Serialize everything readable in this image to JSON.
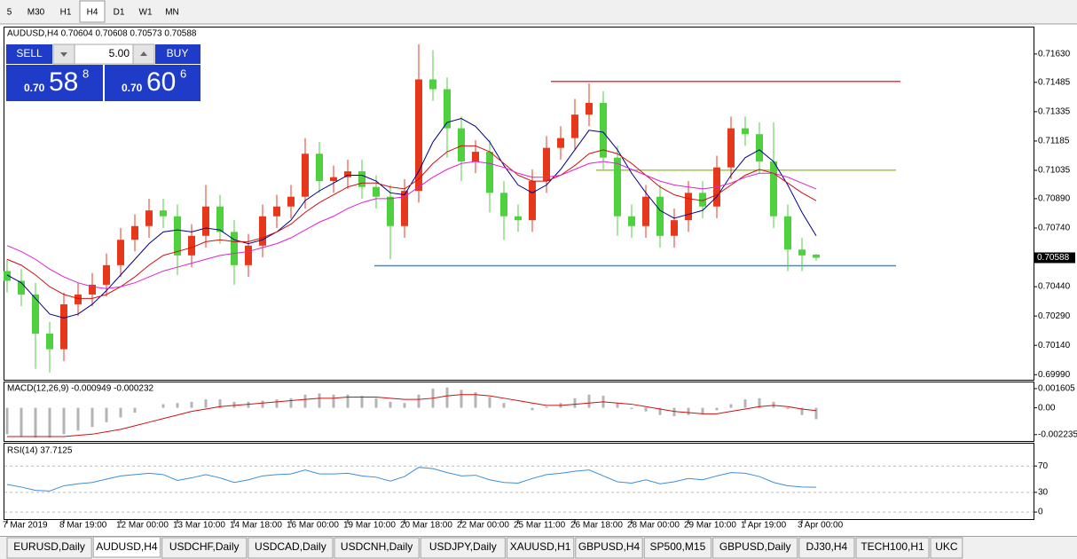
{
  "toolbar": {
    "items": [
      "5",
      "M30",
      "H1",
      "H4",
      "D1",
      "W1",
      "MN"
    ],
    "active": "H4"
  },
  "trade_panel": {
    "sell": "SELL",
    "buy": "BUY",
    "volume": "5.00",
    "bid": {
      "prefix": "0.70",
      "big": "58",
      "small": "8"
    },
    "ask": {
      "prefix": "0.70",
      "big": "60",
      "small": "6"
    }
  },
  "tabs": {
    "items": [
      "EURUSD,Daily",
      "AUDUSD,H4",
      "USDCHF,Daily",
      "USDCAD,Daily",
      "USDCNH,Daily",
      "USDJPY,Daily",
      "XAUUSD,H1",
      "GBPUSD,H4",
      "SP500,M15",
      "GBPUSD,Daily",
      "DJ30,H4",
      "TECH100,H1",
      "UKC"
    ],
    "active": "AUDUSD,H4"
  },
  "chart_data": [
    {
      "type": "candlestick",
      "title": "AUDUSD,H4  0.70604 0.70608 0.70573 0.70588",
      "categories": [
        "7 Mar 2019",
        null,
        null,
        null,
        "8 Mar 19:00",
        null,
        null,
        null,
        "12 Mar 00:00",
        null,
        null,
        null,
        "13 Mar 10:00",
        null,
        null,
        null,
        "14 Mar 18:00",
        null,
        null,
        null,
        "16 Mar 00:00",
        null,
        null,
        null,
        "19 Mar 10:00",
        null,
        null,
        null,
        "20 Mar 18:00",
        null,
        null,
        null,
        "22 Mar 00:00",
        null,
        null,
        null,
        "25 Mar 11:00",
        null,
        null,
        null,
        "26 Mar 18:00",
        null,
        null,
        null,
        "28 Mar 00:00",
        null,
        null,
        null,
        "29 Mar 10:00",
        null,
        null,
        null,
        "1 Apr 19:00",
        null,
        null,
        null,
        "3 Apr 00:00",
        null
      ],
      "open": [
        0.7052,
        0.7047,
        0.704,
        0.702,
        0.7012,
        0.7035,
        0.704,
        0.7045,
        0.7055,
        0.7068,
        0.7075,
        0.7083,
        0.708,
        0.706,
        0.707,
        0.7085,
        0.7072,
        0.7055,
        0.7065,
        0.708,
        0.7085,
        0.709,
        0.7112,
        0.7098,
        0.71,
        0.7103,
        0.7095,
        0.709,
        0.7075,
        0.7093,
        0.715,
        0.7145,
        0.7125,
        0.7108,
        0.7113,
        0.7092,
        0.708,
        0.7078,
        0.7098,
        0.7115,
        0.712,
        0.7132,
        0.7138,
        0.711,
        0.708,
        0.7075,
        0.709,
        0.707,
        0.7078,
        0.7092,
        0.7085,
        0.7105,
        0.7125,
        0.7122,
        0.7108,
        0.708,
        0.7063,
        0.70604
      ],
      "high": [
        0.7058,
        0.7053,
        0.7046,
        0.7026,
        0.7041,
        0.7046,
        0.7051,
        0.7061,
        0.7074,
        0.7081,
        0.7089,
        0.7089,
        0.7086,
        0.7076,
        0.7096,
        0.7091,
        0.7078,
        0.7071,
        0.7086,
        0.7091,
        0.7096,
        0.712,
        0.7118,
        0.7106,
        0.7109,
        0.7109,
        0.7101,
        0.7096,
        0.7099,
        0.7168,
        0.7165,
        0.7151,
        0.7131,
        0.7119,
        0.7119,
        0.7098,
        0.7086,
        0.7104,
        0.7121,
        0.7126,
        0.714,
        0.7148,
        0.7144,
        0.7116,
        0.7086,
        0.7096,
        0.7096,
        0.7084,
        0.7098,
        0.7098,
        0.7111,
        0.7131,
        0.7131,
        0.7128,
        0.7128,
        0.7086,
        0.7069,
        0.70608
      ],
      "low": [
        0.7041,
        0.7034,
        0.7002,
        0.7,
        0.7006,
        0.7029,
        0.7034,
        0.7039,
        0.7049,
        0.7062,
        0.7069,
        0.7074,
        0.705,
        0.7054,
        0.7064,
        0.7066,
        0.7045,
        0.7049,
        0.7059,
        0.7074,
        0.7079,
        0.7084,
        0.7092,
        0.7092,
        0.7094,
        0.7089,
        0.7084,
        0.7058,
        0.7069,
        0.7087,
        0.7139,
        0.711,
        0.7098,
        0.7102,
        0.7082,
        0.7068,
        0.7072,
        0.7072,
        0.7092,
        0.7109,
        0.7114,
        0.7126,
        0.7104,
        0.707,
        0.7069,
        0.7069,
        0.7064,
        0.7064,
        0.7072,
        0.7079,
        0.7079,
        0.7099,
        0.7116,
        0.7102,
        0.7074,
        0.7052,
        0.7052,
        0.70573
      ],
      "close": [
        0.7047,
        0.704,
        0.702,
        0.7012,
        0.7035,
        0.704,
        0.7045,
        0.7055,
        0.7068,
        0.7075,
        0.7083,
        0.708,
        0.706,
        0.707,
        0.7085,
        0.7072,
        0.7055,
        0.7065,
        0.708,
        0.7085,
        0.709,
        0.7112,
        0.7098,
        0.71,
        0.7103,
        0.7095,
        0.709,
        0.7075,
        0.7093,
        0.715,
        0.7145,
        0.7125,
        0.7108,
        0.7113,
        0.7092,
        0.708,
        0.7078,
        0.7098,
        0.7115,
        0.712,
        0.7132,
        0.7138,
        0.711,
        0.708,
        0.7075,
        0.709,
        0.707,
        0.7078,
        0.7092,
        0.7085,
        0.7105,
        0.7125,
        0.7122,
        0.7108,
        0.708,
        0.7063,
        0.706,
        0.70588
      ],
      "up_color": "#e8381b",
      "down_color": "#4fd13f",
      "lines": [
        {
          "color": "#00008b",
          "values": [
            0.705,
            0.7046,
            0.7038,
            0.703,
            0.7028,
            0.703,
            0.7035,
            0.7042,
            0.705,
            0.7058,
            0.7066,
            0.7072,
            0.7073,
            0.7072,
            0.7074,
            0.7073,
            0.7068,
            0.7066,
            0.7068,
            0.7072,
            0.7078,
            0.7088,
            0.7093,
            0.7097,
            0.7101,
            0.7101,
            0.7098,
            0.7092,
            0.7091,
            0.7103,
            0.7118,
            0.7128,
            0.713,
            0.7126,
            0.7118,
            0.7106,
            0.7096,
            0.7092,
            0.7096,
            0.7104,
            0.7114,
            0.7124,
            0.7123,
            0.7114,
            0.7102,
            0.7092,
            0.7083,
            0.7079,
            0.7081,
            0.7083,
            0.709,
            0.7101,
            0.711,
            0.7114,
            0.7108,
            0.7096,
            0.7082,
            0.707
          ]
        },
        {
          "color": "#d01010",
          "values": [
            0.7058,
            0.7055,
            0.705,
            0.7044,
            0.704,
            0.7038,
            0.7038,
            0.704,
            0.7044,
            0.7049,
            0.7055,
            0.706,
            0.7062,
            0.7064,
            0.7067,
            0.7068,
            0.7067,
            0.7067,
            0.7069,
            0.7072,
            0.7076,
            0.7082,
            0.7087,
            0.7091,
            0.7095,
            0.7097,
            0.7097,
            0.7095,
            0.7094,
            0.7099,
            0.7107,
            0.7113,
            0.7116,
            0.7116,
            0.7113,
            0.7107,
            0.7101,
            0.7098,
            0.7098,
            0.7101,
            0.7106,
            0.7112,
            0.7114,
            0.7112,
            0.7107,
            0.7101,
            0.7095,
            0.7091,
            0.7089,
            0.7088,
            0.7091,
            0.7096,
            0.7101,
            0.7104,
            0.7102,
            0.7097,
            0.7092,
            0.7088
          ]
        },
        {
          "color": "#e020d0",
          "values": [
            0.7065,
            0.7062,
            0.7058,
            0.7053,
            0.7049,
            0.7046,
            0.7044,
            0.7043,
            0.7044,
            0.7046,
            0.7049,
            0.7052,
            0.7054,
            0.7056,
            0.7058,
            0.706,
            0.7061,
            0.7062,
            0.7064,
            0.7066,
            0.7069,
            0.7073,
            0.7077,
            0.708,
            0.7084,
            0.7087,
            0.7089,
            0.7089,
            0.709,
            0.7095,
            0.71,
            0.7104,
            0.7107,
            0.7108,
            0.7107,
            0.7105,
            0.7102,
            0.71,
            0.71,
            0.7101,
            0.7104,
            0.7107,
            0.7108,
            0.7107,
            0.7104,
            0.7101,
            0.7098,
            0.7096,
            0.7095,
            0.7094,
            0.7095,
            0.7097,
            0.71,
            0.7102,
            0.7102,
            0.71,
            0.7097,
            0.7094
          ]
        }
      ],
      "levels": [
        {
          "value": 0.7149,
          "color": "#ff3030"
        },
        {
          "value": 0.71036,
          "color": "#9acd32"
        },
        {
          "value": 0.70547,
          "color": "#2f8fe0"
        }
      ],
      "current_price": {
        "value": 0.70588,
        "label": "0.70588"
      },
      "ylim": [
        0.69964,
        0.7177
      ],
      "yticks": [
        {
          "value": 0.7163,
          "label": "0.71630"
        },
        {
          "value": 0.71485,
          "label": "0.71485"
        },
        {
          "value": 0.71335,
          "label": "0.71335"
        },
        {
          "value": 0.71185,
          "label": "0.71185"
        },
        {
          "value": 0.71035,
          "label": "0.71035"
        },
        {
          "value": 0.7089,
          "label": "0.70890"
        },
        {
          "value": 0.7074,
          "label": "0.70740"
        },
        {
          "value": 0.7044,
          "label": "0.70440"
        },
        {
          "value": 0.7029,
          "label": "0.70290"
        },
        {
          "value": 0.7014,
          "label": "0.70140"
        },
        {
          "value": 0.6999,
          "label": "0.69990"
        }
      ]
    },
    {
      "type": "macd",
      "title": "MACD(12,26,9) -0.000949 -0.000232",
      "histogram": {
        "color": "#b4b4b4",
        "values": [
          -0.0022,
          -0.0024,
          -0.0025,
          -0.0025,
          -0.0022,
          -0.0019,
          -0.0016,
          -0.0012,
          -0.0008,
          -0.0004,
          0.0,
          0.0003,
          0.0004,
          0.0005,
          0.0007,
          0.0007,
          0.0005,
          0.0005,
          0.0006,
          0.0007,
          0.0008,
          0.0011,
          0.0012,
          0.0011,
          0.0011,
          0.001,
          0.0008,
          0.0005,
          0.0004,
          0.0011,
          0.0016,
          0.0017,
          0.0015,
          0.0013,
          0.0009,
          0.0004,
          0.0,
          -0.0002,
          0.0001,
          0.0004,
          0.0008,
          0.0011,
          0.001,
          0.0004,
          -0.0001,
          -0.0003,
          -0.0006,
          -0.0007,
          -0.0006,
          -0.0005,
          -0.0002,
          0.0003,
          0.0007,
          0.0008,
          0.0005,
          -0.0001,
          -0.0006,
          -0.000949
        ]
      },
      "signal": {
        "color": "#d01010",
        "values": [
          -0.0024,
          -0.0024,
          -0.0024,
          -0.0024,
          -0.0024,
          -0.0023,
          -0.0022,
          -0.002,
          -0.0018,
          -0.0015,
          -0.0012,
          -0.0009,
          -0.0006,
          -0.0003,
          -0.0001,
          0.0001,
          0.0002,
          0.0003,
          0.0004,
          0.0005,
          0.0006,
          0.0007,
          0.0008,
          0.0008,
          0.0009,
          0.0009,
          0.0009,
          0.0008,
          0.0007,
          0.0007,
          0.0008,
          0.001,
          0.0011,
          0.0011,
          0.001,
          0.0008,
          0.0006,
          0.0004,
          0.0002,
          0.0002,
          0.0003,
          0.0004,
          0.0005,
          0.0004,
          0.0003,
          0.0001,
          -0.0001,
          -0.0003,
          -0.0004,
          -0.0005,
          -0.0005,
          -0.0003,
          -0.0001,
          0.0001,
          0.0002,
          0.0001,
          -0.0001,
          -0.000232
        ]
      },
      "ylim": [
        -0.00277,
        0.00212
      ],
      "yticks": [
        {
          "value": 0.001605,
          "label": "0.001605"
        },
        {
          "value": 0,
          "label": "0.00"
        },
        {
          "value": -0.002235,
          "label": "-0.002235"
        }
      ]
    },
    {
      "type": "line",
      "title": "RSI(14) 37.7125",
      "color": "#3b8fd9",
      "values": [
        42,
        38,
        33,
        32,
        40,
        43,
        45,
        50,
        55,
        57,
        59,
        57,
        48,
        52,
        57,
        52,
        45,
        49,
        55,
        57,
        58,
        64,
        58,
        58,
        59,
        55,
        53,
        47,
        54,
        68,
        66,
        60,
        55,
        56,
        49,
        45,
        44,
        51,
        57,
        59,
        62,
        64,
        55,
        46,
        44,
        49,
        43,
        46,
        51,
        49,
        55,
        60,
        59,
        54,
        45,
        40,
        38,
        37.7125
      ],
      "ylim": [
        -12,
        104
      ],
      "yticks": [
        70,
        30,
        0
      ],
      "grid": "dashed"
    }
  ]
}
